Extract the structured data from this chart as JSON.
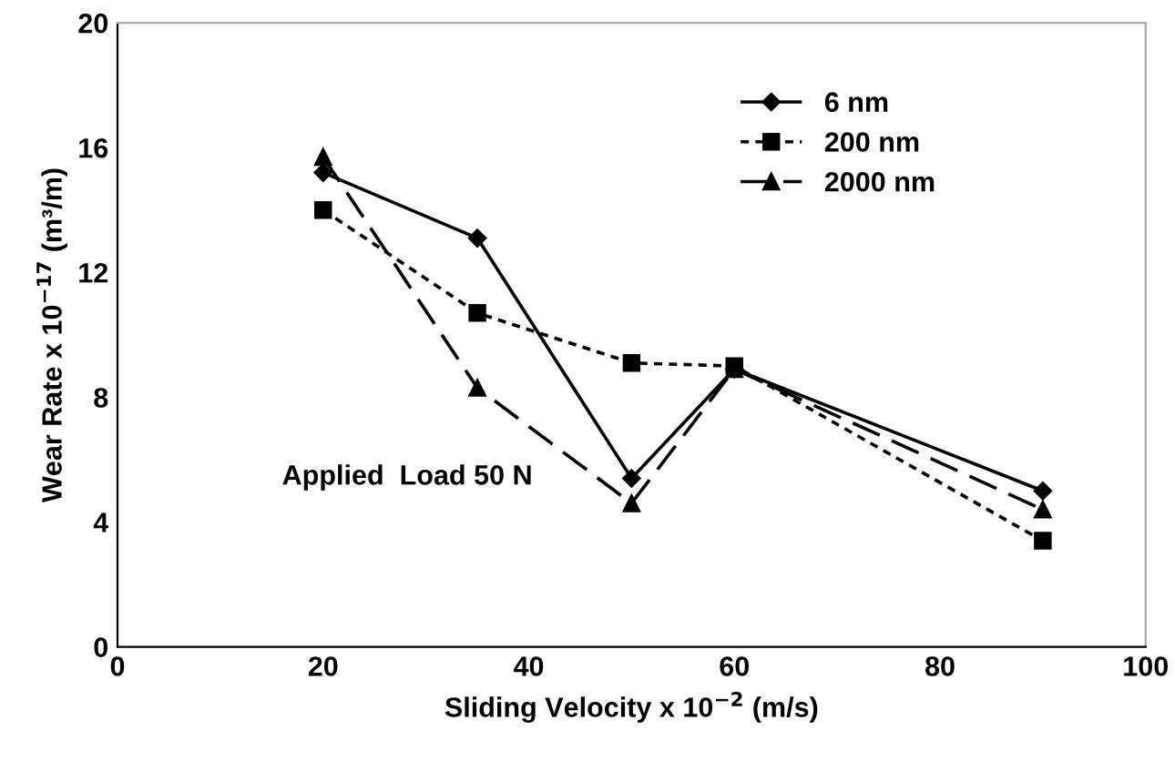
{
  "chart_data": {
    "type": "line",
    "xlabel": "Sliding Velocity x 10$^{−2}$ (m/s)",
    "ylabel": "Wear Rate x 10$^{−17}$ (m³/m)",
    "annotations": [
      "Applied  Load 50 N"
    ],
    "x": [
      20,
      35,
      50,
      60,
      90
    ],
    "series": [
      {
        "name": "6 nm",
        "color": "#000000",
        "marker": "diamond",
        "line_style": "solid",
        "values": [
          15.2,
          13.1,
          5.4,
          8.9,
          5.0
        ]
      },
      {
        "name": "200 nm",
        "color": "#000000",
        "marker": "square",
        "line_style": "dotted",
        "values": [
          14.0,
          10.7,
          9.1,
          9.0,
          3.4
        ]
      },
      {
        "name": "2000 nm",
        "color": "#000000",
        "marker": "triangle",
        "line_style": "dashed",
        "values": [
          15.7,
          8.3,
          4.6,
          8.9,
          4.4
        ]
      }
    ],
    "xlim": [
      0,
      100
    ],
    "xticks": [
      0,
      20,
      40,
      60,
      80,
      100
    ],
    "ylim": [
      0,
      20
    ],
    "yticks": [
      0,
      4,
      8,
      12,
      16,
      20
    ],
    "grid": false,
    "legend": "top right"
  }
}
